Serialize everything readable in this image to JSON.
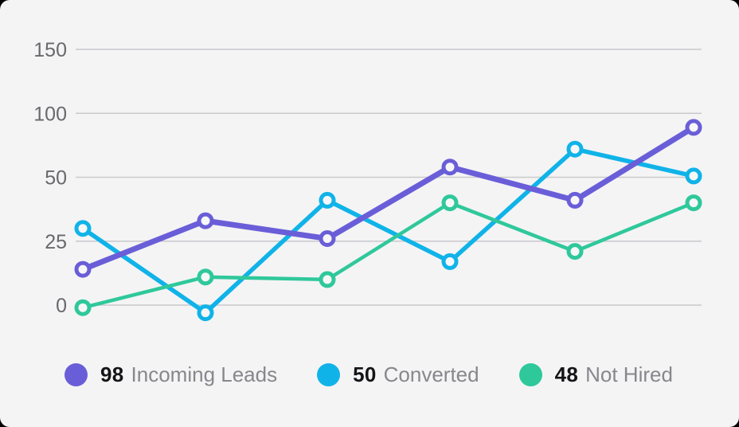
{
  "colors": {
    "page_background": "#000000",
    "card_background": "#f4f4f5",
    "grid_line": "#c9c9cb",
    "axis_text": "#69696d",
    "legend_value_text": "#151517",
    "legend_label_text": "#87878c",
    "marker_fill": "#f7f7f8",
    "incoming_leads": "#6a5ed8",
    "converted": "#10b3e8",
    "not_hired": "#2fc89b"
  },
  "chart_data": {
    "type": "line",
    "title": "",
    "xlabel": "",
    "ylabel": "",
    "grid": "horizontal",
    "legend_position": "bottom",
    "yticks": [
      150,
      100,
      50,
      25,
      0
    ],
    "ylim": [
      -5,
      150
    ],
    "x_count": 6,
    "series": [
      {
        "name": "Incoming Leads",
        "color": "#6a5ed8",
        "values": [
          14,
          33,
          26,
          58,
          41,
          89
        ]
      },
      {
        "name": "Converted",
        "color": "#10b3e8",
        "values": [
          30,
          -3,
          41,
          17,
          72,
          51
        ]
      },
      {
        "name": "Not Hired",
        "color": "#2fc89b",
        "values": [
          -1,
          11,
          10,
          40,
          21,
          40
        ]
      }
    ]
  },
  "legend": {
    "items": [
      {
        "value": "98",
        "label": "Incoming Leads",
        "color": "#6a5ed8"
      },
      {
        "value": "50",
        "label": "Converted",
        "color": "#10b3e8"
      },
      {
        "value": "48",
        "label": "Not Hired",
        "color": "#2fc89b"
      }
    ]
  }
}
